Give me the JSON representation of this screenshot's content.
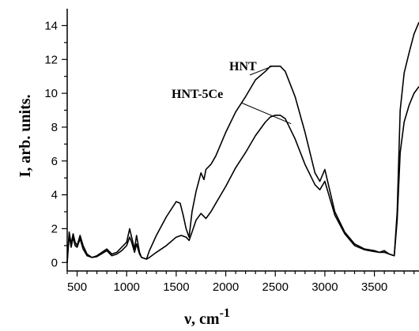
{
  "chart_data": {
    "type": "line",
    "title": "",
    "xlabel": "ν, cm",
    "xlabel_sup": "-1",
    "ylabel": "I, arb. units.",
    "xlim": [
      400,
      3950
    ],
    "ylim": [
      -0.5,
      15
    ],
    "x_ticks": [
      500,
      1000,
      1500,
      2000,
      2500,
      3000,
      3500
    ],
    "y_ticks": [
      0,
      2,
      4,
      6,
      8,
      10,
      12,
      14
    ],
    "grid": false,
    "legend": "none (curves labelled directly)",
    "series": [
      {
        "name": "HNT",
        "color": "#000000",
        "x": [
          400,
          420,
          440,
          460,
          480,
          500,
          530,
          560,
          600,
          650,
          700,
          800,
          850,
          900,
          950,
          1000,
          1030,
          1050,
          1080,
          1100,
          1130,
          1150,
          1200,
          1230,
          1300,
          1400,
          1500,
          1540,
          1570,
          1600,
          1630,
          1660,
          1700,
          1750,
          1780,
          1800,
          1850,
          1900,
          2000,
          2100,
          2200,
          2300,
          2400,
          2450,
          2500,
          2550,
          2600,
          2700,
          2800,
          2900,
          2950,
          3000,
          3020,
          3100,
          3200,
          3300,
          3400,
          3500,
          3550,
          3600,
          3650,
          3700,
          3730,
          3760,
          3800,
          3850,
          3900,
          3950
        ],
        "y": [
          0.0,
          1.8,
          1.1,
          1.7,
          1.2,
          1.0,
          1.6,
          1.0,
          0.5,
          0.3,
          0.4,
          0.8,
          0.5,
          0.6,
          0.9,
          1.2,
          2.0,
          1.5,
          0.8,
          1.6,
          0.6,
          0.3,
          0.2,
          0.7,
          1.6,
          2.7,
          3.6,
          3.5,
          2.8,
          2.0,
          1.5,
          3.0,
          4.2,
          5.3,
          4.9,
          5.5,
          5.8,
          6.3,
          7.7,
          8.9,
          9.8,
          10.8,
          11.3,
          11.6,
          11.6,
          11.6,
          11.3,
          9.8,
          7.7,
          5.3,
          4.8,
          5.5,
          5.0,
          3.0,
          1.8,
          1.1,
          0.8,
          0.7,
          0.6,
          0.7,
          0.5,
          0.4,
          3.0,
          9.0,
          11.2,
          12.4,
          13.5,
          14.2
        ]
      },
      {
        "name": "HNT-5Ce",
        "color": "#000000",
        "x": [
          400,
          420,
          440,
          460,
          480,
          500,
          530,
          560,
          600,
          650,
          700,
          800,
          850,
          900,
          950,
          1000,
          1030,
          1050,
          1080,
          1100,
          1130,
          1150,
          1200,
          1230,
          1300,
          1400,
          1500,
          1550,
          1600,
          1630,
          1660,
          1700,
          1750,
          1800,
          1850,
          1900,
          2000,
          2100,
          2200,
          2300,
          2400,
          2450,
          2500,
          2550,
          2600,
          2700,
          2800,
          2900,
          2950,
          3000,
          3020,
          3100,
          3200,
          3300,
          3400,
          3500,
          3550,
          3600,
          3650,
          3700,
          3730,
          3760,
          3800,
          3850,
          3900,
          3950
        ],
        "y": [
          0.0,
          1.6,
          0.9,
          1.5,
          1.0,
          0.9,
          1.4,
          0.8,
          0.4,
          0.3,
          0.35,
          0.7,
          0.4,
          0.5,
          0.7,
          1.0,
          1.5,
          1.2,
          0.6,
          1.1,
          0.5,
          0.3,
          0.2,
          0.3,
          0.6,
          1.0,
          1.5,
          1.6,
          1.5,
          1.3,
          1.8,
          2.5,
          2.9,
          2.6,
          3.0,
          3.5,
          4.5,
          5.6,
          6.5,
          7.5,
          8.3,
          8.6,
          8.7,
          8.7,
          8.5,
          7.3,
          5.8,
          4.6,
          4.3,
          4.8,
          4.4,
          2.8,
          1.7,
          1.0,
          0.75,
          0.65,
          0.6,
          0.6,
          0.5,
          0.4,
          2.5,
          6.5,
          8.3,
          9.3,
          10.0,
          10.4
        ]
      }
    ]
  }
}
